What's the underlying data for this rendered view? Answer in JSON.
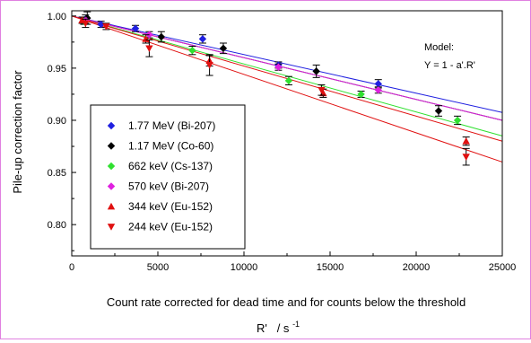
{
  "chart_data": {
    "type": "scatter",
    "title": "",
    "xlabel": "Count rate corrected for dead time and for counts below the threshold",
    "xsymbol": "R'   / s",
    "xsymbol_sup": "-1",
    "ylabel": "Pile-up correction factor",
    "xlim": [
      0,
      25000
    ],
    "ylim": [
      0.77,
      1.005
    ],
    "x_ticks": [
      0,
      5000,
      10000,
      15000,
      20000,
      25000
    ],
    "x_tick_labels": [
      "0",
      "5000",
      "10000",
      "15000",
      "20000",
      "25000"
    ],
    "y_ticks": [
      0.8,
      0.85,
      0.9,
      0.95,
      1.0
    ],
    "y_tick_labels": [
      "0.80",
      "0.85",
      "0.90",
      "0.95",
      "1.00"
    ],
    "grid": false,
    "legend_position": "bottom-left",
    "annotation_lines": [
      "Model:",
      "Y = 1 - a'.R'"
    ],
    "series": [
      {
        "name": "1.77 MeV (Bi-207)",
        "marker": "diamond",
        "color": "#2020e0",
        "slope": 3.7e-06,
        "points": [
          {
            "x": 800,
            "y": 0.997,
            "err": 0.004
          },
          {
            "x": 1700,
            "y": 0.992,
            "err": 0.003
          },
          {
            "x": 3700,
            "y": 0.988,
            "err": 0.003
          },
          {
            "x": 7600,
            "y": 0.978,
            "err": 0.004
          },
          {
            "x": 12000,
            "y": 0.953,
            "err": 0.003
          },
          {
            "x": 17800,
            "y": 0.935,
            "err": 0.004
          }
        ]
      },
      {
        "name": "1.17 MeV (Co-60)",
        "marker": "diamond",
        "color": "#000000",
        "slope": 4e-06,
        "points": [
          {
            "x": 900,
            "y": 0.998,
            "err": 0.006
          },
          {
            "x": 5200,
            "y": 0.98,
            "err": 0.005
          },
          {
            "x": 8800,
            "y": 0.969,
            "err": 0.005
          },
          {
            "x": 14200,
            "y": 0.947,
            "err": 0.006
          },
          {
            "x": 21300,
            "y": 0.909,
            "err": 0.005
          }
        ]
      },
      {
        "name": "662 keV (Cs-137)",
        "marker": "diamond",
        "color": "#30e030",
        "slope": 4.6e-06,
        "points": [
          {
            "x": 700,
            "y": 0.995,
            "err": 0.003
          },
          {
            "x": 7000,
            "y": 0.967,
            "err": 0.004
          },
          {
            "x": 12600,
            "y": 0.938,
            "err": 0.004
          },
          {
            "x": 16800,
            "y": 0.925,
            "err": 0.003
          },
          {
            "x": 22400,
            "y": 0.9,
            "err": 0.004
          }
        ]
      },
      {
        "name": "570 keV (Bi-207)",
        "marker": "diamond",
        "color": "#e020e0",
        "slope": 4e-06,
        "points": [
          {
            "x": 800,
            "y": 0.996,
            "err": 0.003
          },
          {
            "x": 4500,
            "y": 0.982,
            "err": 0.003
          },
          {
            "x": 12000,
            "y": 0.951,
            "err": 0.003
          },
          {
            "x": 17800,
            "y": 0.929,
            "err": 0.003
          }
        ]
      },
      {
        "name": "344 keV (Eu-152)",
        "marker": "triangle-up",
        "color": "#e01010",
        "slope": 4.8e-06,
        "points": [
          {
            "x": 600,
            "y": 0.996,
            "err": 0.003
          },
          {
            "x": 4300,
            "y": 0.978,
            "err": 0.004
          },
          {
            "x": 8000,
            "y": 0.957,
            "err": 0.005
          },
          {
            "x": 14600,
            "y": 0.926,
            "err": 0.004
          },
          {
            "x": 22900,
            "y": 0.88,
            "err": 0.004
          }
        ]
      },
      {
        "name": "244 keV (Eu-152)",
        "marker": "triangle-down",
        "color": "#e01010",
        "slope": 5.6e-06,
        "points": [
          {
            "x": 800,
            "y": 0.993,
            "err": 0.004
          },
          {
            "x": 2000,
            "y": 0.99,
            "err": 0.003
          },
          {
            "x": 4500,
            "y": 0.969,
            "err": 0.008
          },
          {
            "x": 8000,
            "y": 0.953,
            "err": 0.01
          },
          {
            "x": 14500,
            "y": 0.929,
            "err": 0.005
          },
          {
            "x": 22900,
            "y": 0.865,
            "err": 0.008
          }
        ]
      }
    ]
  }
}
